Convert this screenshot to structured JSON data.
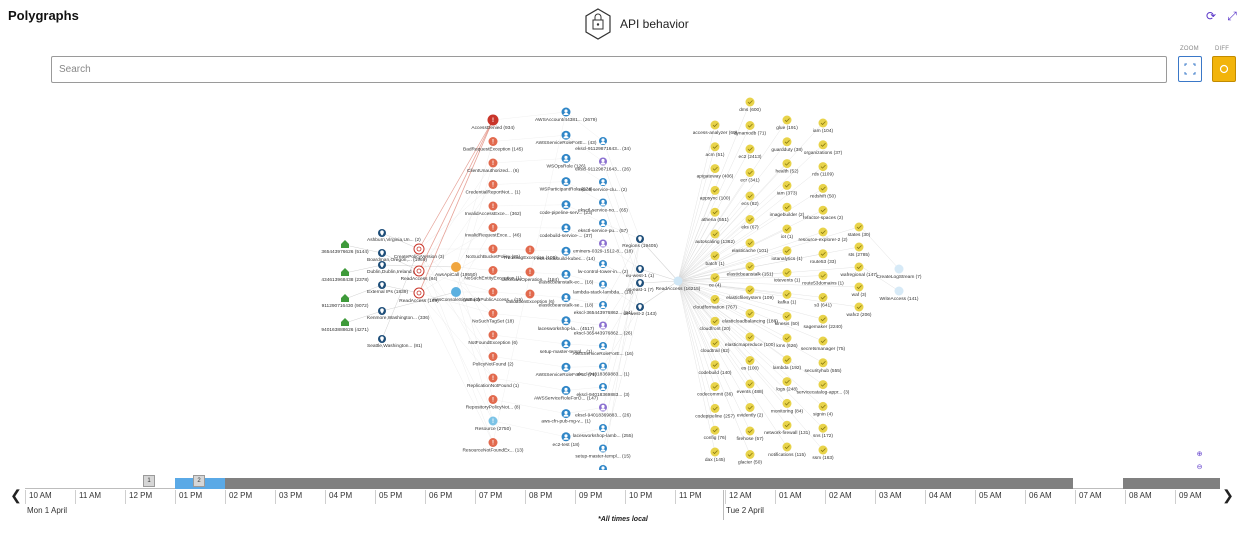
{
  "app": {
    "title": "Polygraphs"
  },
  "header": {
    "title": "API behavior",
    "icon": "lock-shield-icon"
  },
  "controls": {
    "zoom_label": "ZOOM",
    "diff_label": "DIFF",
    "zoom_icon": "zoom-fit-icon",
    "diff_icon": "diff-toggle-icon"
  },
  "search": {
    "placeholder": "Search",
    "value": ""
  },
  "colors": {
    "accent": "#5a36c9",
    "error_node": "#e26a4e",
    "error_selected": "#c9352a",
    "user_node": "#2f86c7",
    "service_node": "#e8d34a",
    "location_node": "#1f4f7a",
    "ip_node": "#3e9a3a",
    "timeline_selected": "#5aa9e6",
    "timeline_filled": "#808080",
    "diff_active": "#f2b40b"
  },
  "graph": {
    "ips": [
      "365443976626 (5144)",
      "434613968438 (2378)",
      "911290716430 (9072)",
      "940163888626 (4271)"
    ],
    "locations": [
      "Ashburn,Virginia,Un... (2)",
      "Boardman,Oregon,... (1969)",
      "Dublin,Dublin,Ireland (4)",
      "External IPs (1839)",
      "Kenmore,Washington... (336)",
      "Seattle,Washington... (81)"
    ],
    "sources": [
      "CreatePolicyVersion (3)",
      "ReadAccess (84)",
      "AwsApiCall (19550)",
      "ReadAccess (198)",
      "AwsConsoleSignIn (4)"
    ],
    "errors": [
      "AccessDenied (934)",
      "BadRequestException (145)",
      "ClientUnauthorized... (6)",
      "CredentialReportNot... (1)",
      "InvalidAccessExce... (362)",
      "InvalidRequestExce... (46)",
      "NoSuchBucketPolicy (21)",
      "NoSuchEntityException (1)",
      "NoSuchPublicAccess... (15)",
      "NoSuchTagSet (18)",
      "NotFoundException (6)",
      "PolicyNotFound (2)",
      "ReplicationNotFound (1)",
      "RepositoryPolicyNot... (8)",
      "Resource (2750)",
      "ResourceNotFoundEx... (13)"
    ],
    "mid_errors": [
      "ThrottlingException (103)",
      "UnknownOperation... (184)",
      "ValidationException (6)"
    ],
    "users": [
      "AWSAccount/44381... (2679)",
      "AWSServiceRoleForE... (43)",
      "WSOpsRole (126)",
      "WSParticipantRole (674)",
      "code-pipeline-serv... (23)",
      "codebuild-service-... (37)",
      "eks-codebuild-kubec... (14)",
      "elasticbeanstalk-ec... (16)",
      "elasticbeanstalk-se... (18)",
      "lacesworkshop-la... (4517)",
      "setup-master-templ... (1)",
      "AWSServiceRoleForA... (71)",
      "AWSServiceRoleForO... (147)",
      "aws-cfn-pub-mg-v... (1)",
      "ec2-test (18)"
    ],
    "resources": [
      "ekscl-91129871643... (34)",
      "ekscl-91129871643... (26)",
      "eksctl-service-clu... (2)",
      "eksctl-service-no... (65)",
      "eksctl-service-pu... (57)",
      "eminers-0329-1512-8... (18)",
      "lw-control-tower-in... (2)",
      "lambda-stack-lambda... (18)",
      "ekscl-365443976862... (94)",
      "ekscl-365443976862... (26)",
      "AWSServiceRoleForE... (16)",
      "ekscl-94018369883... (1)",
      "ekscl-94018369883... (3)",
      "ekscl-94018369883... (26)",
      "lacesworkshop-lamb... (255)",
      "setup-master-templ... (15)",
      "aws (1)"
    ],
    "regions": [
      "Regions (19405)",
      "eu-west-1 (1)",
      "us-east-1 (7)",
      "us-west-2 (143)"
    ],
    "read_access": "ReadAccess (16215)",
    "services_col1": [
      "access-analyzer (60)",
      "acm (51)",
      "apigateway (406)",
      "appsync (100)",
      "athena (551)",
      "autoscaling (1362)",
      "batch (1)",
      "ce (4)",
      "cloudformation (767)",
      "cloudfront (20)",
      "cloudtrail (62)",
      "codebuild (140)",
      "codecommit (36)",
      "codepipeline (257)",
      "config (76)",
      "dax (145)"
    ],
    "services_col2": [
      "dms (600)",
      "dynamodb (71)",
      "ec2 (2413)",
      "ecr (341)",
      "ecs (82)",
      "eks (67)",
      "elasticache (101)",
      "elasticbeanstalk (151)",
      "elasticfilesystem (109)",
      "elasticloadbalancing (188)",
      "elasticmapreduce (100)",
      "es (100)",
      "events (488)",
      "evidently (2)",
      "firehose (57)",
      "glacier (50)"
    ],
    "services_col3": [
      "glue (191)",
      "guardduty (38)",
      "health (52)",
      "iam (373)",
      "imagebuilder (2)",
      "iot (1)",
      "iotanalytics (1)",
      "iotevents (1)",
      "kafka (1)",
      "kinesis (50)",
      "kms (626)",
      "lambda (192)",
      "logs (248)",
      "monitoring (84)",
      "network-firewall (131)",
      "notifications (115)"
    ],
    "services_col4": [
      "iam (104)",
      "organizations (37)",
      "rds (1109)",
      "redshift (50)",
      "refactor-spaces (2)",
      "resource-explorer-2 (2)",
      "route53 (33)",
      "route53domains (1)",
      "s3 (641)",
      "sagemaker (2240)",
      "secretsmanager (75)",
      "securityhub (555)",
      "servicecatalog-appr... (3)",
      "signin (4)",
      "sns (172)",
      "ssm (163)"
    ],
    "services_col5": [
      "states (30)",
      "sts (2785)",
      "wafregional (147)",
      "waf (3)",
      "wafv2 (206)"
    ],
    "actions": [
      "CreateLogStream (7)",
      "WriteAccess (141)"
    ]
  },
  "timeline": {
    "markers": [
      "1",
      "2"
    ],
    "ticks": [
      "10 AM",
      "11 AM",
      "12 PM",
      "01 PM",
      "02 PM",
      "03 PM",
      "04 PM",
      "05 PM",
      "06 PM",
      "07 PM",
      "08 PM",
      "09 PM",
      "10 PM",
      "11 PM",
      "12 AM",
      "01 AM",
      "02 AM",
      "03 AM",
      "04 AM",
      "05 AM",
      "06 AM",
      "07 AM",
      "08 AM",
      "09 AM"
    ],
    "day1": "Mon 1 April",
    "day2": "Tue 2 April",
    "note": "*All times local"
  }
}
